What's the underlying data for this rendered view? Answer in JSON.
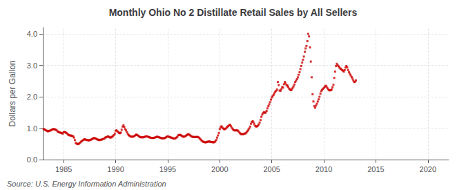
{
  "chart_data": {
    "type": "scatter",
    "title": "Monthly Ohio No 2 Distillate Retail Sales by All Sellers",
    "ylabel": "Dollars per Gallon",
    "annotations": [
      "Source: U.S. Energy Information Administration"
    ],
    "color": "#cc0000",
    "marker": "square",
    "grid": true,
    "xlim": [
      1983,
      2022
    ],
    "ylim": [
      0.0,
      4.2
    ],
    "xticks": [
      1985,
      1990,
      1995,
      2000,
      2005,
      2010,
      2015,
      2020
    ],
    "yticks": [
      {
        "value": 0.0,
        "label": "0.0"
      },
      {
        "value": 1.0,
        "label": "1.0"
      },
      {
        "value": 2.0,
        "label": "2.0"
      },
      {
        "value": 3.0,
        "label": "3.0"
      },
      {
        "value": 4.0,
        "label": "4.0"
      }
    ],
    "x": [
      1983.08,
      1983.17,
      1983.25,
      1983.33,
      1983.42,
      1983.5,
      1983.58,
      1983.67,
      1983.75,
      1983.83,
      1983.92,
      1984.0,
      1984.08,
      1984.17,
      1984.25,
      1984.33,
      1984.42,
      1984.5,
      1984.58,
      1984.67,
      1984.75,
      1984.83,
      1984.92,
      1985.0,
      1985.08,
      1985.17,
      1985.25,
      1985.33,
      1985.42,
      1985.5,
      1985.58,
      1985.67,
      1985.75,
      1985.83,
      1985.92,
      1986.0,
      1986.08,
      1986.17,
      1986.25,
      1986.33,
      1986.42,
      1986.5,
      1986.58,
      1986.67,
      1986.75,
      1986.83,
      1986.92,
      1987.0,
      1987.08,
      1987.17,
      1987.25,
      1987.33,
      1987.42,
      1987.5,
      1987.58,
      1987.67,
      1987.75,
      1987.83,
      1987.92,
      1988.0,
      1988.08,
      1988.17,
      1988.25,
      1988.33,
      1988.42,
      1988.5,
      1988.58,
      1988.67,
      1988.75,
      1988.83,
      1988.92,
      1989.0,
      1989.08,
      1989.17,
      1989.25,
      1989.33,
      1989.42,
      1989.5,
      1989.58,
      1989.67,
      1989.75,
      1989.83,
      1989.92,
      1990.0,
      1990.08,
      1990.17,
      1990.25,
      1990.33,
      1990.42,
      1990.5,
      1990.58,
      1990.67,
      1990.75,
      1990.83,
      1990.92,
      1991.0,
      1991.08,
      1991.17,
      1991.25,
      1991.33,
      1991.42,
      1991.5,
      1991.58,
      1991.67,
      1991.75,
      1991.83,
      1991.92,
      1992.0,
      1992.08,
      1992.17,
      1992.25,
      1992.33,
      1992.42,
      1992.5,
      1992.58,
      1992.67,
      1992.75,
      1992.83,
      1992.92,
      1993.0,
      1993.08,
      1993.17,
      1993.25,
      1993.33,
      1993.42,
      1993.5,
      1993.58,
      1993.67,
      1993.75,
      1993.83,
      1993.92,
      1994.0,
      1994.08,
      1994.17,
      1994.25,
      1994.33,
      1994.42,
      1994.5,
      1994.58,
      1994.67,
      1994.75,
      1994.83,
      1994.92,
      1995.0,
      1995.08,
      1995.17,
      1995.25,
      1995.33,
      1995.42,
      1995.5,
      1995.58,
      1995.67,
      1995.75,
      1995.83,
      1995.92,
      1996.0,
      1996.08,
      1996.17,
      1996.25,
      1996.33,
      1996.42,
      1996.5,
      1996.58,
      1996.67,
      1996.75,
      1996.83,
      1996.92,
      1997.0,
      1997.08,
      1997.17,
      1997.25,
      1997.33,
      1997.42,
      1997.5,
      1997.58,
      1997.67,
      1997.75,
      1997.83,
      1997.92,
      1998.0,
      1998.08,
      1998.17,
      1998.25,
      1998.33,
      1998.42,
      1998.5,
      1998.58,
      1998.67,
      1998.75,
      1998.83,
      1998.92,
      1999.0,
      1999.08,
      1999.17,
      1999.25,
      1999.33,
      1999.42,
      1999.5,
      1999.58,
      1999.67,
      1999.75,
      1999.83,
      1999.92,
      2000.0,
      2000.08,
      2000.17,
      2000.25,
      2000.33,
      2000.42,
      2000.5,
      2000.58,
      2000.67,
      2000.75,
      2000.83,
      2000.92,
      2001.0,
      2001.08,
      2001.17,
      2001.25,
      2001.33,
      2001.42,
      2001.5,
      2001.58,
      2001.67,
      2001.75,
      2001.83,
      2001.92,
      2002.0,
      2002.08,
      2002.17,
      2002.25,
      2002.33,
      2002.42,
      2002.5,
      2002.58,
      2002.67,
      2002.75,
      2002.83,
      2002.92,
      2003.0,
      2003.08,
      2003.17,
      2003.25,
      2003.33,
      2003.42,
      2003.5,
      2003.58,
      2003.67,
      2003.75,
      2003.83,
      2003.92,
      2004.0,
      2004.08,
      2004.17,
      2004.25,
      2004.33,
      2004.42,
      2004.5,
      2004.58,
      2004.67,
      2004.75,
      2004.83,
      2004.92,
      2005.0,
      2005.08,
      2005.17,
      2005.25,
      2005.33,
      2005.42,
      2005.5,
      2005.58,
      2005.67,
      2005.75,
      2005.83,
      2005.92,
      2006.0,
      2006.08,
      2006.17,
      2006.25,
      2006.33,
      2006.42,
      2006.5,
      2006.58,
      2006.67,
      2006.75,
      2006.83,
      2006.92,
      2007.0,
      2007.08,
      2007.17,
      2007.25,
      2007.33,
      2007.42,
      2007.5,
      2007.58,
      2007.67,
      2007.75,
      2007.83,
      2007.92,
      2008.0,
      2008.08,
      2008.17,
      2008.25,
      2008.33,
      2008.42,
      2008.5,
      2008.58,
      2008.67,
      2008.75,
      2008.83,
      2008.92,
      2009.0,
      2009.08,
      2009.17,
      2009.25,
      2009.33,
      2009.42,
      2009.5,
      2009.58,
      2009.67,
      2009.75,
      2009.83,
      2009.92,
      2010.0,
      2010.08,
      2010.17,
      2010.25,
      2010.33,
      2010.42,
      2010.5,
      2010.58,
      2010.67,
      2010.75,
      2010.83,
      2010.92,
      2011.0,
      2011.08,
      2011.17,
      2011.25,
      2011.33,
      2011.42,
      2011.5,
      2011.58,
      2011.67,
      2011.75,
      2011.83,
      2011.92,
      2012.0,
      2012.08,
      2012.17,
      2012.25,
      2012.33,
      2012.42,
      2012.5,
      2012.58,
      2012.67,
      2012.75,
      2012.83,
      2012.92,
      2013.0,
      2013.08
    ],
    "values": [
      0.97,
      0.96,
      0.94,
      0.93,
      0.91,
      0.9,
      0.91,
      0.92,
      0.93,
      0.94,
      0.96,
      0.97,
      0.97,
      0.96,
      0.95,
      0.93,
      0.9,
      0.88,
      0.87,
      0.86,
      0.85,
      0.84,
      0.83,
      0.87,
      0.88,
      0.87,
      0.85,
      0.83,
      0.8,
      0.78,
      0.77,
      0.77,
      0.76,
      0.75,
      0.74,
      0.7,
      0.62,
      0.53,
      0.51,
      0.49,
      0.5,
      0.51,
      0.54,
      0.57,
      0.59,
      0.61,
      0.63,
      0.65,
      0.64,
      0.63,
      0.62,
      0.62,
      0.61,
      0.62,
      0.63,
      0.64,
      0.66,
      0.67,
      0.69,
      0.68,
      0.67,
      0.65,
      0.64,
      0.63,
      0.62,
      0.63,
      0.63,
      0.64,
      0.65,
      0.66,
      0.67,
      0.7,
      0.71,
      0.72,
      0.74,
      0.73,
      0.71,
      0.7,
      0.71,
      0.73,
      0.75,
      0.78,
      0.83,
      0.92,
      0.93,
      0.9,
      0.87,
      0.85,
      0.84,
      0.86,
      0.95,
      1.05,
      1.09,
      1.04,
      0.97,
      0.93,
      0.87,
      0.82,
      0.78,
      0.76,
      0.74,
      0.73,
      0.73,
      0.73,
      0.74,
      0.76,
      0.78,
      0.8,
      0.78,
      0.76,
      0.74,
      0.72,
      0.71,
      0.71,
      0.71,
      0.71,
      0.72,
      0.73,
      0.74,
      0.74,
      0.73,
      0.72,
      0.71,
      0.7,
      0.69,
      0.69,
      0.69,
      0.69,
      0.7,
      0.71,
      0.72,
      0.73,
      0.72,
      0.71,
      0.7,
      0.69,
      0.68,
      0.68,
      0.68,
      0.68,
      0.69,
      0.71,
      0.73,
      0.74,
      0.73,
      0.72,
      0.71,
      0.7,
      0.69,
      0.68,
      0.67,
      0.67,
      0.68,
      0.7,
      0.72,
      0.77,
      0.78,
      0.79,
      0.78,
      0.76,
      0.74,
      0.73,
      0.73,
      0.74,
      0.76,
      0.78,
      0.8,
      0.81,
      0.79,
      0.77,
      0.75,
      0.73,
      0.72,
      0.72,
      0.72,
      0.72,
      0.72,
      0.72,
      0.72,
      0.7,
      0.67,
      0.64,
      0.61,
      0.58,
      0.57,
      0.56,
      0.55,
      0.55,
      0.56,
      0.57,
      0.57,
      0.58,
      0.57,
      0.56,
      0.56,
      0.55,
      0.55,
      0.56,
      0.58,
      0.63,
      0.7,
      0.77,
      0.85,
      0.97,
      1.03,
      1.06,
      1.02,
      0.99,
      0.97,
      0.97,
      0.99,
      1.02,
      1.05,
      1.07,
      1.1,
      1.11,
      1.06,
      1.01,
      0.97,
      0.94,
      0.93,
      0.93,
      0.93,
      0.93,
      0.92,
      0.89,
      0.85,
      0.82,
      0.81,
      0.81,
      0.81,
      0.82,
      0.83,
      0.84,
      0.87,
      0.91,
      0.95,
      0.99,
      1.05,
      1.14,
      1.2,
      1.22,
      1.18,
      1.12,
      1.07,
      1.05,
      1.06,
      1.08,
      1.12,
      1.18,
      1.26,
      1.36,
      1.43,
      1.48,
      1.51,
      1.49,
      1.5,
      1.55,
      1.63,
      1.7,
      1.76,
      1.83,
      1.91,
      1.98,
      2.02,
      2.06,
      2.11,
      2.16,
      2.19,
      2.23,
      2.47,
      2.37,
      2.2,
      2.19,
      2.24,
      2.31,
      2.29,
      2.4,
      2.47,
      2.42,
      2.36,
      2.36,
      2.31,
      2.26,
      2.23,
      2.21,
      2.23,
      2.28,
      2.33,
      2.39,
      2.47,
      2.51,
      2.56,
      2.62,
      2.7,
      2.78,
      2.88,
      2.98,
      3.09,
      3.18,
      3.28,
      3.43,
      3.54,
      3.62,
      3.77,
      4.0,
      3.92,
      3.57,
      3.12,
      2.62,
      2.08,
      1.85,
      1.7,
      1.65,
      1.72,
      1.78,
      1.85,
      1.92,
      2.0,
      2.1,
      2.18,
      2.22,
      2.25,
      2.28,
      2.32,
      2.35,
      2.33,
      2.28,
      2.24,
      2.21,
      2.2,
      2.21,
      2.23,
      2.3,
      2.38,
      2.6,
      2.8,
      2.98,
      3.05,
      3.0,
      2.97,
      2.93,
      2.9,
      2.88,
      2.85,
      2.83,
      2.8,
      2.85,
      2.93,
      2.98,
      2.93,
      2.85,
      2.78,
      2.73,
      2.68,
      2.63,
      2.58,
      2.52,
      2.47,
      2.48,
      2.52
    ]
  }
}
